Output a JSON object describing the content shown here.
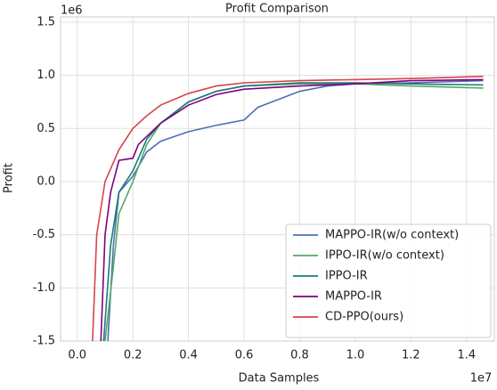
{
  "chart_data": {
    "type": "line",
    "title": "Profit Comparison",
    "xlabel": "Data Samples",
    "ylabel": "Profit",
    "x_offset_label": "1e7",
    "y_offset_label": "1e6",
    "xlim": [
      -0.06,
      1.5
    ],
    "ylim": [
      -1.5,
      1.55
    ],
    "xticks": [
      {
        "value": 0,
        "label": "0.0"
      },
      0.2,
      0.4,
      0.6,
      0.8,
      {
        "value": 1,
        "label": "1.0"
      },
      1.2,
      1.4
    ],
    "yticks": [
      1.5,
      {
        "value": 1,
        "label": "1.0"
      },
      0.5,
      {
        "value": 0,
        "label": "0.0"
      },
      -0.5,
      {
        "value": -1,
        "label": "-1.0"
      },
      -1.5
    ],
    "grid": true,
    "legend": "lower right",
    "series": [
      {
        "name": "MAPPO-IR(w/o context)",
        "color": "#4c72b0",
        "x": [
          0.11,
          0.13,
          0.15,
          0.2,
          0.25,
          0.3,
          0.4,
          0.5,
          0.6,
          0.65,
          0.7,
          0.8,
          0.9,
          1.0,
          1.2,
          1.46
        ],
        "values": [
          -1.5,
          -0.6,
          -0.1,
          0.05,
          0.28,
          0.38,
          0.47,
          0.53,
          0.58,
          0.7,
          0.75,
          0.85,
          0.9,
          0.92,
          0.93,
          0.95
        ]
      },
      {
        "name": "IPPO-IR(w/o context)",
        "color": "#55a868",
        "x": [
          0.1,
          0.13,
          0.15,
          0.2,
          0.25,
          0.3,
          0.4,
          0.5,
          0.6,
          0.8,
          1.0,
          1.2,
          1.46
        ],
        "values": [
          -1.5,
          -0.8,
          -0.3,
          0.0,
          0.35,
          0.55,
          0.75,
          0.85,
          0.9,
          0.92,
          0.92,
          0.9,
          0.88
        ]
      },
      {
        "name": "IPPO-IR",
        "color": "#1b7a7a",
        "x": [
          0.095,
          0.12,
          0.15,
          0.2,
          0.25,
          0.3,
          0.4,
          0.5,
          0.6,
          0.8,
          1.0,
          1.2,
          1.46
        ],
        "values": [
          -1.5,
          -0.6,
          -0.1,
          0.1,
          0.4,
          0.55,
          0.75,
          0.85,
          0.9,
          0.93,
          0.93,
          0.92,
          0.91
        ]
      },
      {
        "name": "MAPPO-IR",
        "color": "#800080",
        "x": [
          0.085,
          0.1,
          0.12,
          0.15,
          0.2,
          0.22,
          0.3,
          0.4,
          0.5,
          0.6,
          0.8,
          1.0,
          1.2,
          1.46
        ],
        "values": [
          -1.5,
          -0.5,
          -0.1,
          0.2,
          0.22,
          0.35,
          0.55,
          0.72,
          0.82,
          0.87,
          0.9,
          0.92,
          0.95,
          0.96
        ]
      },
      {
        "name": "CD-PPO(ours)",
        "color": "#d9434b",
        "x": [
          0.055,
          0.07,
          0.1,
          0.15,
          0.2,
          0.25,
          0.3,
          0.4,
          0.5,
          0.6,
          0.8,
          1.0,
          1.2,
          1.46
        ],
        "values": [
          -1.5,
          -0.5,
          0.0,
          0.3,
          0.5,
          0.62,
          0.72,
          0.83,
          0.9,
          0.93,
          0.95,
          0.96,
          0.97,
          0.99
        ]
      }
    ]
  }
}
